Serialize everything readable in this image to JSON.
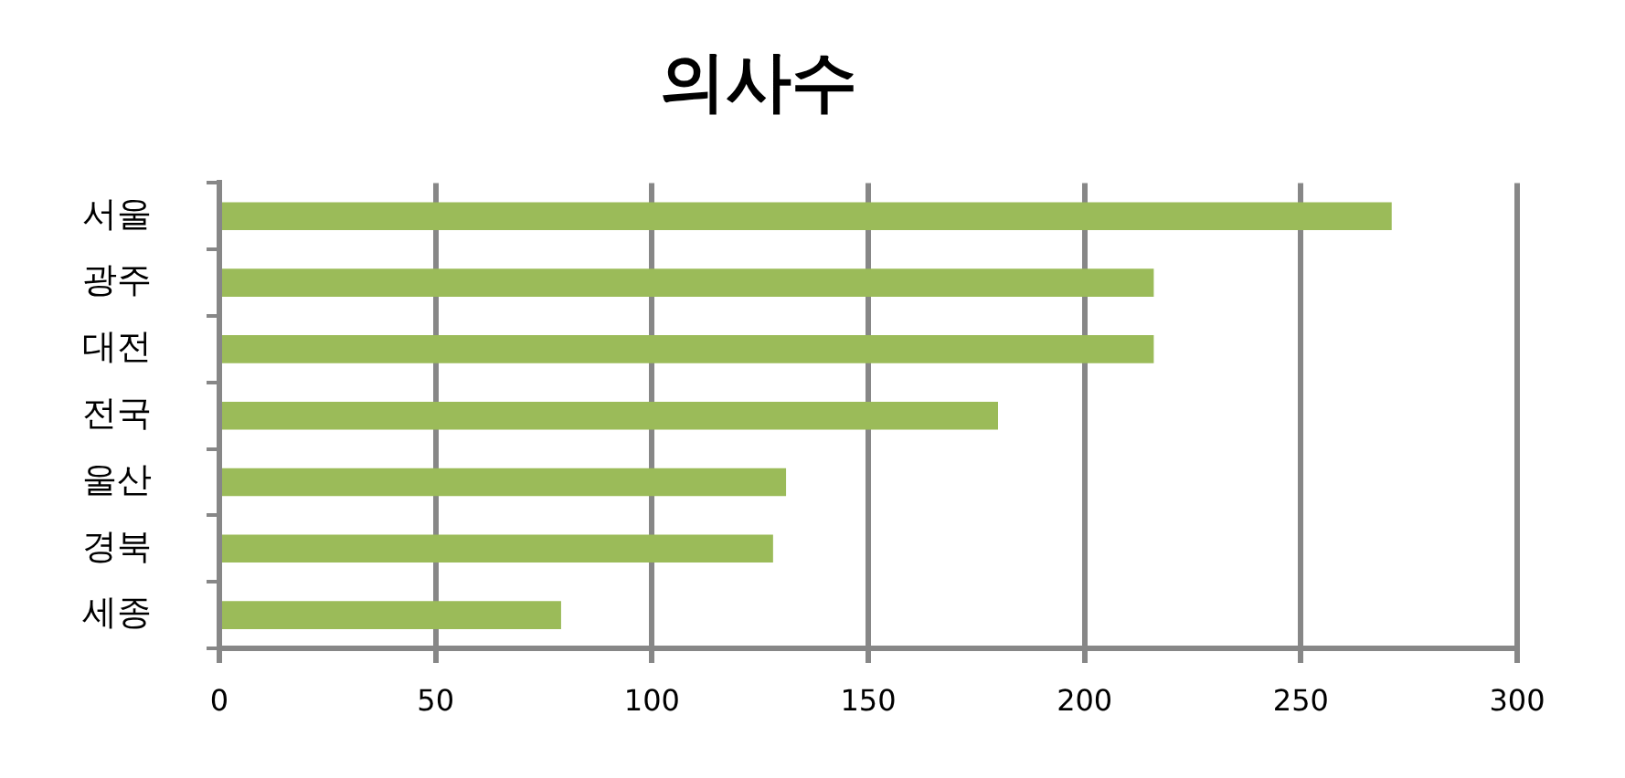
{
  "chart_data": {
    "type": "bar",
    "title": "의사수",
    "orientation": "horizontal",
    "categories": [
      "서울",
      "광주",
      "대전",
      "전국",
      "울산",
      "경북",
      "세종"
    ],
    "values": [
      271,
      216,
      216,
      180,
      131,
      128,
      79
    ],
    "color": "#9bbb59",
    "xlim": [
      0,
      300
    ],
    "xticks": [
      0,
      50,
      100,
      150,
      200,
      250,
      300
    ],
    "grid": "x"
  }
}
